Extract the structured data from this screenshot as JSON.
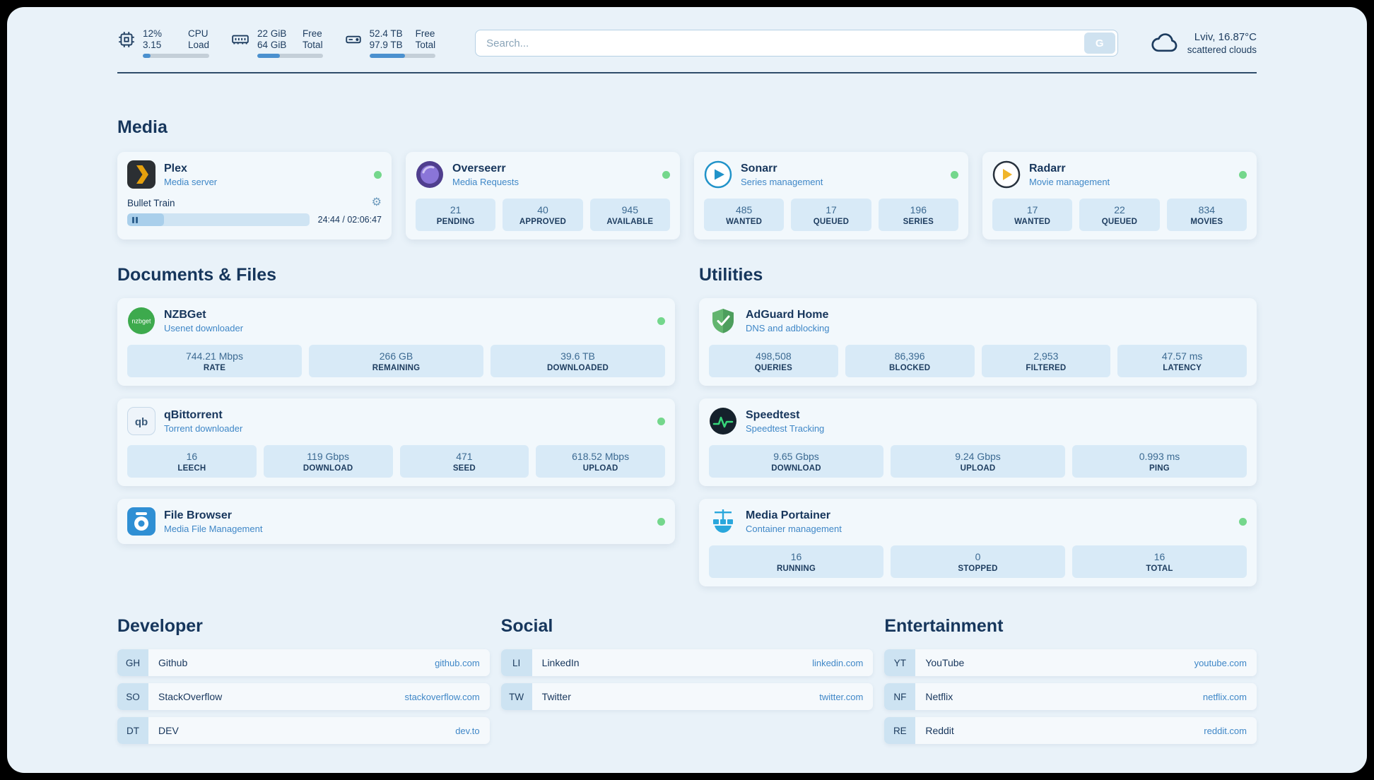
{
  "theme": {
    "page_bg": "#e9f2f9",
    "card_bg": "#f2f8fc",
    "stat_bg": "#d8eaf7",
    "text_dark": "#1d3c5f",
    "accent_blue": "#3f87c7",
    "status_green": "#74d78c"
  },
  "header": {
    "cpu": {
      "rows": [
        {
          "value": "12%",
          "label": "CPU"
        },
        {
          "value": "3.15",
          "label": "Load"
        }
      ],
      "percent": 12
    },
    "memory": {
      "rows": [
        {
          "value": "22 GiB",
          "label": "Free"
        },
        {
          "value": "64 GiB",
          "label": "Total"
        }
      ],
      "percent": 34
    },
    "disk": {
      "rows": [
        {
          "value": "52.4 TB",
          "label": "Free"
        },
        {
          "value": "97.9 TB",
          "label": "Total"
        }
      ],
      "percent": 54
    },
    "search": {
      "placeholder": "Search...",
      "engine_label": "G"
    },
    "weather": {
      "location": "Lviv, 16.87°C",
      "condition": "scattered clouds"
    }
  },
  "sections": {
    "media": {
      "title": "Media",
      "services": [
        {
          "name": "Plex",
          "description": "Media server",
          "player": {
            "title": "Bullet Train",
            "time": "24:44 / 02:06:47",
            "progress_percent": 20
          }
        },
        {
          "name": "Overseerr",
          "description": "Media Requests",
          "stats": [
            {
              "value": "21",
              "label": "PENDING"
            },
            {
              "value": "40",
              "label": "APPROVED"
            },
            {
              "value": "945",
              "label": "AVAILABLE"
            }
          ]
        },
        {
          "name": "Sonarr",
          "description": "Series management",
          "stats": [
            {
              "value": "485",
              "label": "WANTED"
            },
            {
              "value": "17",
              "label": "QUEUED"
            },
            {
              "value": "196",
              "label": "SERIES"
            }
          ]
        },
        {
          "name": "Radarr",
          "description": "Movie management",
          "stats": [
            {
              "value": "17",
              "label": "WANTED"
            },
            {
              "value": "22",
              "label": "QUEUED"
            },
            {
              "value": "834",
              "label": "MOVIES"
            }
          ]
        }
      ]
    },
    "documents": {
      "title": "Documents & Files",
      "services": [
        {
          "name": "NZBGet",
          "description": "Usenet downloader",
          "stats": [
            {
              "value": "744.21 Mbps",
              "label": "RATE"
            },
            {
              "value": "266 GB",
              "label": "REMAINING"
            },
            {
              "value": "39.6 TB",
              "label": "DOWNLOADED"
            }
          ]
        },
        {
          "name": "qBittorrent",
          "description": "Torrent downloader",
          "stats": [
            {
              "value": "16",
              "label": "LEECH"
            },
            {
              "value": "119 Gbps",
              "label": "DOWNLOAD"
            },
            {
              "value": "471",
              "label": "SEED"
            },
            {
              "value": "618.52 Mbps",
              "label": "UPLOAD"
            }
          ]
        },
        {
          "name": "File Browser",
          "description": "Media File Management"
        }
      ]
    },
    "utilities": {
      "title": "Utilities",
      "services": [
        {
          "name": "AdGuard Home",
          "description": "DNS and adblocking",
          "stats": [
            {
              "value": "498,508",
              "label": "QUERIES"
            },
            {
              "value": "86,396",
              "label": "BLOCKED"
            },
            {
              "value": "2,953",
              "label": "FILTERED"
            },
            {
              "value": "47.57 ms",
              "label": "LATENCY"
            }
          ]
        },
        {
          "name": "Speedtest",
          "description": "Speedtest Tracking",
          "stats": [
            {
              "value": "9.65 Gbps",
              "label": "DOWNLOAD"
            },
            {
              "value": "9.24 Gbps",
              "label": "UPLOAD"
            },
            {
              "value": "0.993 ms",
              "label": "PING"
            }
          ]
        },
        {
          "name": "Media Portainer",
          "description": "Container management",
          "stats": [
            {
              "value": "16",
              "label": "RUNNING"
            },
            {
              "value": "0",
              "label": "STOPPED"
            },
            {
              "value": "16",
              "label": "TOTAL"
            }
          ]
        }
      ]
    },
    "bookmarks": [
      {
        "title": "Developer",
        "items": [
          {
            "abbr": "GH",
            "name": "Github",
            "domain": "github.com"
          },
          {
            "abbr": "SO",
            "name": "StackOverflow",
            "domain": "stackoverflow.com"
          },
          {
            "abbr": "DT",
            "name": "DEV",
            "domain": "dev.to"
          }
        ]
      },
      {
        "title": "Social",
        "items": [
          {
            "abbr": "LI",
            "name": "LinkedIn",
            "domain": "linkedin.com"
          },
          {
            "abbr": "TW",
            "name": "Twitter",
            "domain": "twitter.com"
          }
        ]
      },
      {
        "title": "Entertainment",
        "items": [
          {
            "abbr": "YT",
            "name": "YouTube",
            "domain": "youtube.com"
          },
          {
            "abbr": "NF",
            "name": "Netflix",
            "domain": "netflix.com"
          },
          {
            "abbr": "RE",
            "name": "Reddit",
            "domain": "reddit.com"
          }
        ]
      }
    ]
  }
}
